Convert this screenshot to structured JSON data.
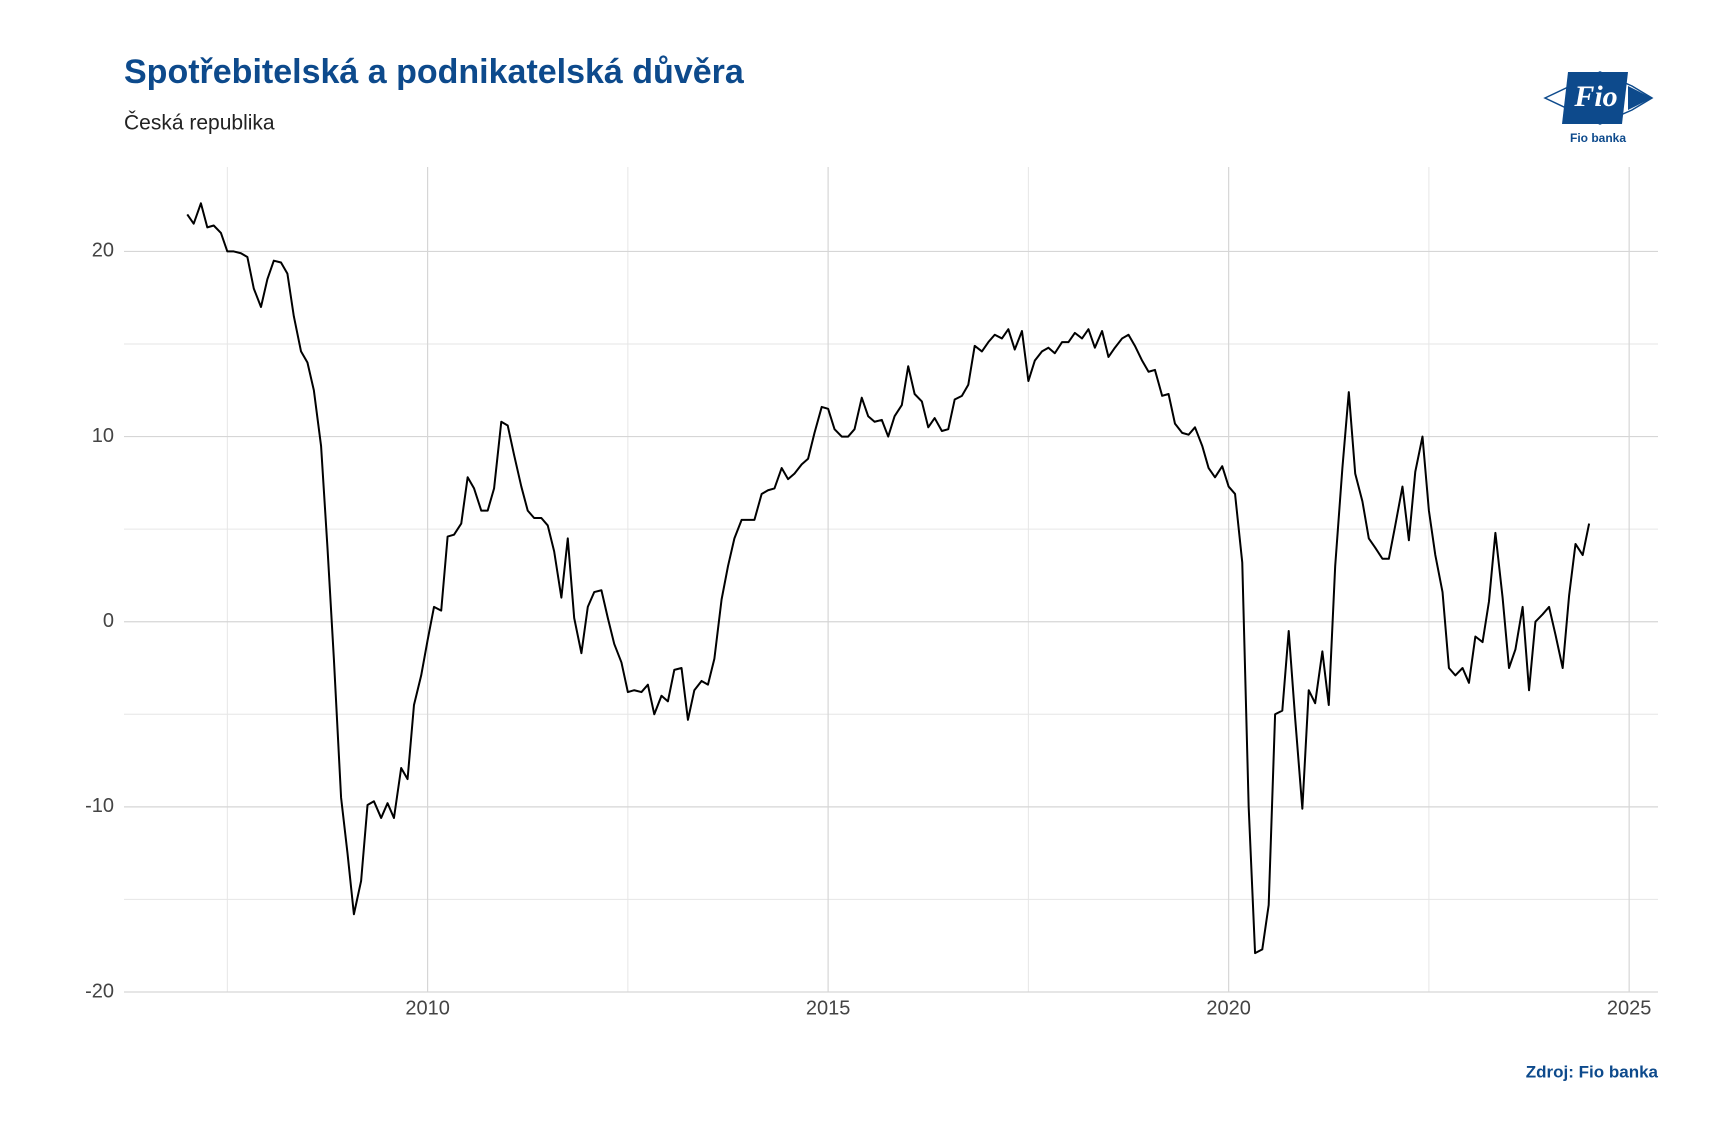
{
  "chart_data": {
    "type": "line",
    "title": "Spotřebitelská a podnikatelská důvěra",
    "subtitle": "Česká republika",
    "source": "Zdroj: Fio banka",
    "color": "#000000",
    "grid": true,
    "xlim": [
      2006.21,
      2025.36
    ],
    "xticks": [
      2010,
      2015,
      2020,
      2025
    ],
    "xticks_minor": [
      2007.5,
      2012.5,
      2017.5,
      2022.5
    ],
    "ylim": [
      -20,
      24.56
    ],
    "yticks": [
      -20,
      -10,
      0,
      10,
      20
    ],
    "yticks_minor": [
      -15,
      -5,
      5,
      15
    ],
    "x": [
      2007,
      2007.08,
      2007.17,
      2007.25,
      2007.33,
      2007.42,
      2007.5,
      2007.58,
      2007.67,
      2007.75,
      2007.83,
      2007.92,
      2008,
      2008.08,
      2008.17,
      2008.25,
      2008.33,
      2008.42,
      2008.5,
      2008.58,
      2008.67,
      2008.75,
      2008.83,
      2008.92,
      2009,
      2009.08,
      2009.17,
      2009.25,
      2009.33,
      2009.42,
      2009.5,
      2009.58,
      2009.67,
      2009.75,
      2009.83,
      2009.92,
      2010,
      2010.08,
      2010.17,
      2010.25,
      2010.33,
      2010.42,
      2010.5,
      2010.58,
      2010.67,
      2010.75,
      2010.83,
      2010.92,
      2011,
      2011.08,
      2011.17,
      2011.25,
      2011.33,
      2011.42,
      2011.5,
      2011.58,
      2011.67,
      2011.75,
      2011.83,
      2011.92,
      2012,
      2012.08,
      2012.17,
      2012.25,
      2012.33,
      2012.42,
      2012.5,
      2012.58,
      2012.67,
      2012.75,
      2012.83,
      2012.92,
      2013,
      2013.08,
      2013.17,
      2013.25,
      2013.33,
      2013.42,
      2013.5,
      2013.58,
      2013.67,
      2013.75,
      2013.83,
      2013.92,
      2014,
      2014.08,
      2014.17,
      2014.25,
      2014.33,
      2014.42,
      2014.5,
      2014.58,
      2014.67,
      2014.75,
      2014.83,
      2014.92,
      2015,
      2015.08,
      2015.17,
      2015.25,
      2015.33,
      2015.42,
      2015.5,
      2015.58,
      2015.67,
      2015.75,
      2015.83,
      2015.92,
      2016,
      2016.08,
      2016.17,
      2016.25,
      2016.33,
      2016.42,
      2016.5,
      2016.58,
      2016.67,
      2016.75,
      2016.83,
      2016.92,
      2017,
      2017.08,
      2017.17,
      2017.25,
      2017.33,
      2017.42,
      2017.5,
      2017.58,
      2017.67,
      2017.75,
      2017.83,
      2017.92,
      2018,
      2018.08,
      2018.17,
      2018.25,
      2018.33,
      2018.42,
      2018.5,
      2018.58,
      2018.67,
      2018.75,
      2018.83,
      2018.92,
      2019,
      2019.08,
      2019.17,
      2019.25,
      2019.33,
      2019.42,
      2019.5,
      2019.58,
      2019.67,
      2019.75,
      2019.83,
      2019.92,
      2020,
      2020.08,
      2020.17,
      2020.25,
      2020.33,
      2020.42,
      2020.5,
      2020.58,
      2020.67,
      2020.75,
      2020.83,
      2020.92,
      2021,
      2021.08,
      2021.17,
      2021.25,
      2021.33,
      2021.42,
      2021.5,
      2021.58,
      2021.67,
      2021.75,
      2021.83,
      2021.92,
      2022,
      2022.08,
      2022.17,
      2022.25,
      2022.33,
      2022.42,
      2022.5,
      2022.58,
      2022.67,
      2022.75,
      2022.83,
      2022.92,
      2023,
      2023.08,
      2023.17,
      2023.25,
      2023.33,
      2023.42,
      2023.5,
      2023.58,
      2023.67,
      2023.75,
      2023.83,
      2023.92,
      2024,
      2024.08,
      2024.17,
      2024.25,
      2024.33,
      2024.42,
      2024.5
    ],
    "values": [
      22.0,
      21.5,
      22.6,
      21.3,
      21.4,
      21.0,
      20.0,
      20.0,
      19.9,
      19.7,
      18.0,
      17.0,
      18.5,
      19.5,
      19.4,
      18.8,
      16.5,
      14.6,
      14.0,
      12.5,
      9.5,
      4.0,
      -2.0,
      -9.5,
      -12.5,
      -15.8,
      -14.0,
      -9.9,
      -9.7,
      -10.6,
      -9.8,
      -10.6,
      -7.9,
      -8.5,
      -4.5,
      -2.9,
      -1.0,
      0.8,
      0.6,
      4.6,
      4.7,
      5.3,
      7.8,
      7.2,
      6.0,
      6.0,
      7.2,
      10.8,
      10.6,
      9.0,
      7.3,
      6.0,
      5.6,
      5.6,
      5.2,
      3.8,
      1.3,
      4.5,
      0.2,
      -1.7,
      0.8,
      1.6,
      1.7,
      0.2,
      -1.2,
      -2.2,
      -3.8,
      -3.7,
      -3.8,
      -3.4,
      -5.0,
      -4.0,
      -4.3,
      -2.6,
      -2.5,
      -5.3,
      -3.7,
      -3.2,
      -3.4,
      -2.0,
      1.2,
      3.0,
      4.5,
      5.5,
      5.5,
      5.5,
      6.9,
      7.1,
      7.2,
      8.3,
      7.7,
      8.0,
      8.5,
      8.8,
      10.2,
      11.6,
      11.5,
      10.4,
      10.0,
      10.0,
      10.4,
      12.1,
      11.1,
      10.8,
      10.9,
      10.0,
      11.1,
      11.7,
      13.8,
      12.3,
      11.9,
      10.5,
      11.0,
      10.3,
      10.4,
      12.0,
      12.2,
      12.8,
      14.9,
      14.6,
      15.1,
      15.5,
      15.3,
      15.8,
      14.7,
      15.7,
      13.0,
      14.1,
      14.6,
      14.8,
      14.5,
      15.1,
      15.1,
      15.6,
      15.3,
      15.8,
      14.8,
      15.7,
      14.3,
      14.8,
      15.3,
      15.5,
      14.9,
      14.1,
      13.5,
      13.6,
      12.2,
      12.3,
      10.7,
      10.2,
      10.1,
      10.5,
      9.5,
      8.3,
      7.8,
      8.4,
      7.3,
      6.9,
      3.2,
      -10.0,
      -17.9,
      -17.7,
      -15.3,
      -5.0,
      -4.8,
      -0.5,
      -5.2,
      -10.1,
      -3.7,
      -4.4,
      -1.6,
      -4.5,
      3.0,
      8.3,
      12.4,
      8.0,
      6.5,
      4.5,
      4.0,
      3.4,
      3.4,
      5.2,
      7.3,
      4.4,
      8.1,
      10.0,
      6.0,
      3.6,
      1.6,
      -2.5,
      -2.9,
      -2.5,
      -3.3,
      -0.8,
      -1.1,
      1.1,
      4.8,
      1.3,
      -2.5,
      -1.5,
      0.8,
      -3.7,
      0.0,
      0.4,
      0.8,
      -0.7,
      -2.5,
      1.4,
      4.2,
      3.6,
      5.3
    ]
  },
  "logo": {
    "text": "Fio",
    "caption": "Fio banka"
  }
}
